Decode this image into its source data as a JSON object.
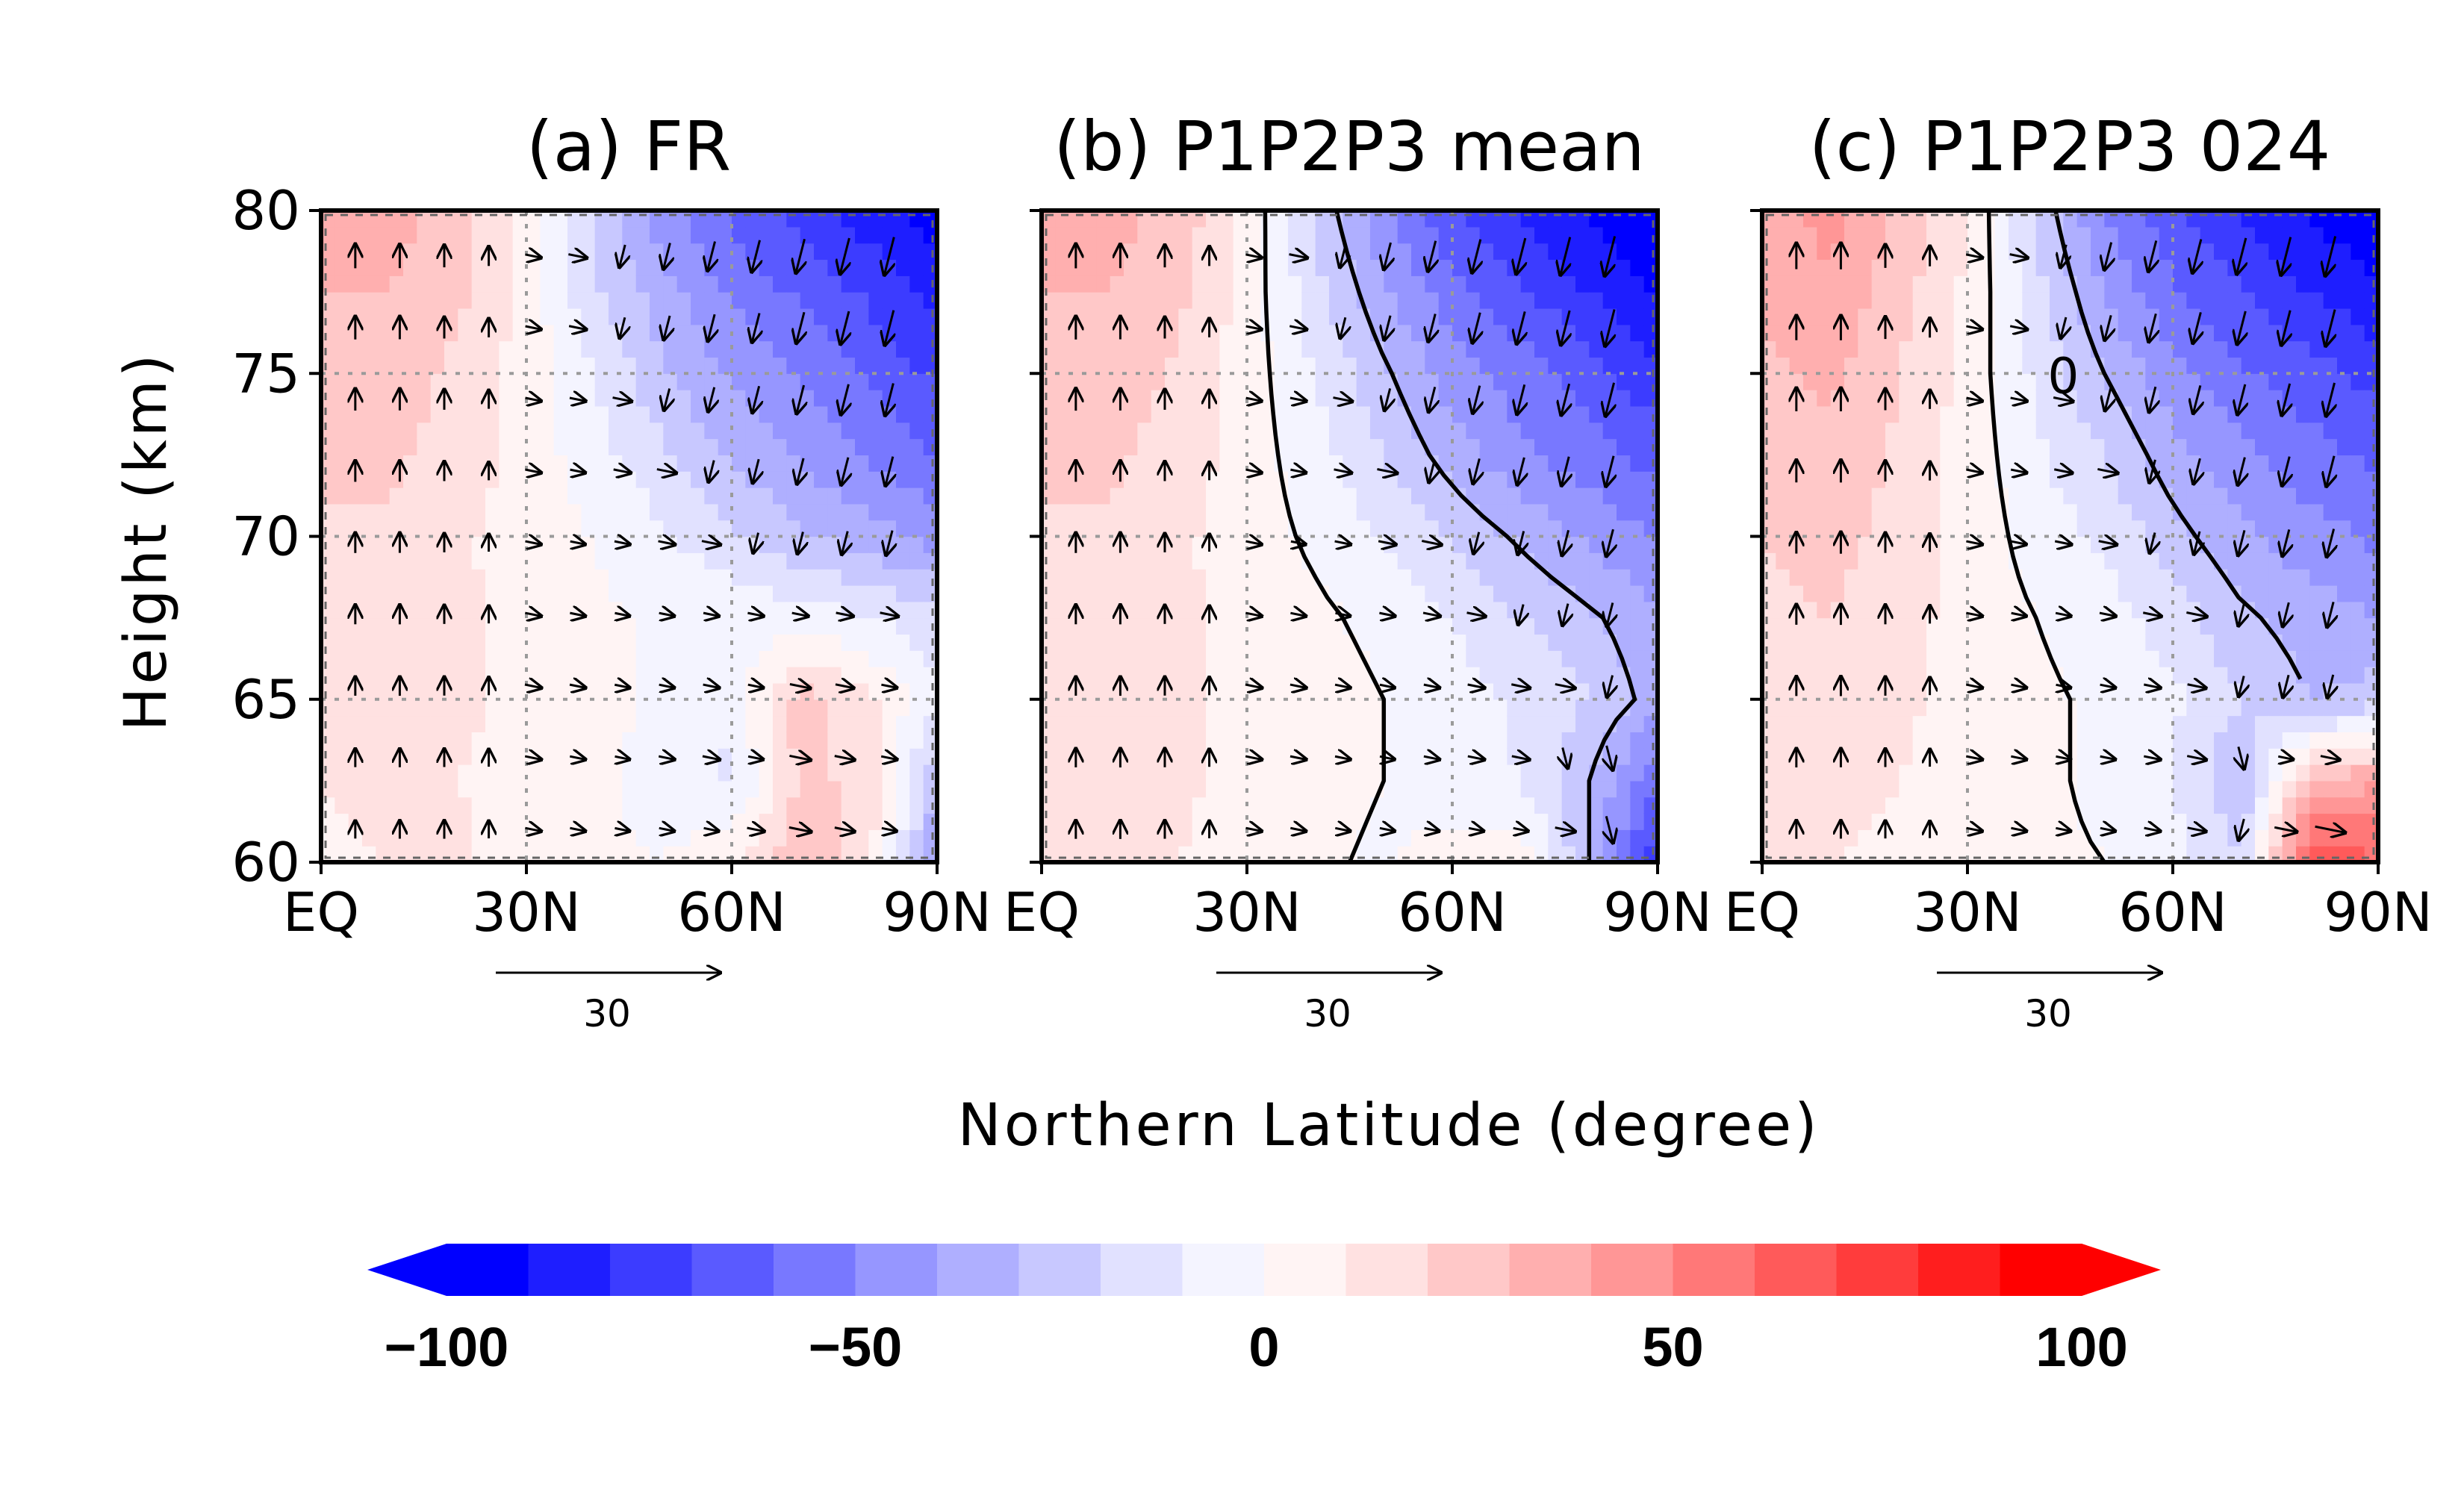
{
  "figure": {
    "ylabel": "Height (km)",
    "xlabel": "Northern Latitude (degree)",
    "reference_vector_label": "30",
    "contour_zero_label": "0"
  },
  "colorbar": {
    "tick_labels": [
      "−100",
      "−50",
      "0",
      "50",
      "100"
    ],
    "levels": [
      -100,
      -90,
      -80,
      -70,
      -60,
      -50,
      -40,
      -30,
      -20,
      -10,
      0,
      10,
      20,
      30,
      40,
      50,
      60,
      70,
      80,
      90,
      100
    ],
    "extend": "both",
    "colors": [
      "#0000ff",
      "#1e1eff",
      "#3c3cff",
      "#5a5aff",
      "#7878ff",
      "#9696ff",
      "#afafff",
      "#c8c8ff",
      "#e1e1ff",
      "#f4f4ff",
      "#fff4f4",
      "#ffe1e1",
      "#ffc8c8",
      "#ffafaf",
      "#ff9696",
      "#ff7878",
      "#ff5a5a",
      "#ff3c3c",
      "#ff1e1e",
      "#ff0000"
    ]
  },
  "chart_data": [
    {
      "type": "heatmap",
      "title": "(a) FR",
      "xlabel": "Northern Latitude (degree)",
      "ylabel": "Height (km)",
      "x_ticks": [
        "EQ",
        "30N",
        "60N",
        "90N"
      ],
      "x_tick_values": [
        0,
        30,
        60,
        90
      ],
      "y_ticks": [
        "60",
        "65",
        "70",
        "75",
        "80"
      ],
      "y_tick_values": [
        60,
        65,
        70,
        75,
        80
      ],
      "xlim": [
        0,
        90
      ],
      "ylim": [
        60,
        80
      ],
      "grid": true,
      "lat": [
        0,
        10,
        20,
        30,
        40,
        50,
        60,
        70,
        80,
        90
      ],
      "height": [
        60,
        62.5,
        65,
        67.5,
        70,
        72.5,
        75,
        77.5,
        80
      ],
      "values": [
        [
          8,
          10,
          12,
          5,
          2,
          0,
          8,
          28,
          12,
          -40
        ],
        [
          10,
          12,
          10,
          6,
          2,
          -5,
          -12,
          22,
          18,
          -30
        ],
        [
          12,
          14,
          12,
          8,
          4,
          -2,
          -8,
          25,
          12,
          -8
        ],
        [
          14,
          16,
          12,
          6,
          2,
          -2,
          -3,
          -5,
          -10,
          -15
        ],
        [
          18,
          18,
          12,
          5,
          0,
          -8,
          -18,
          -28,
          -35,
          -45
        ],
        [
          22,
          22,
          16,
          6,
          -6,
          -18,
          -32,
          -42,
          -52,
          -60
        ],
        [
          25,
          25,
          18,
          6,
          -10,
          -28,
          -42,
          -52,
          -62,
          -72
        ],
        [
          30,
          30,
          22,
          6,
          -18,
          -36,
          -52,
          -62,
          -72,
          -85
        ],
        [
          32,
          34,
          25,
          8,
          -22,
          -45,
          -62,
          -75,
          -85,
          -95
        ]
      ],
      "contours": false,
      "vector_reference": 30
    },
    {
      "type": "heatmap",
      "title": "(b) P1P2P3 mean",
      "xlabel": "Northern Latitude (degree)",
      "ylabel": "Height (km)",
      "x_ticks": [
        "EQ",
        "30N",
        "60N",
        "90N"
      ],
      "x_tick_values": [
        0,
        30,
        60,
        90
      ],
      "y_ticks": [
        "60",
        "65",
        "70",
        "75",
        "80"
      ],
      "y_tick_values": [
        60,
        65,
        70,
        75,
        80
      ],
      "xlim": [
        0,
        90
      ],
      "ylim": [
        60,
        80
      ],
      "grid": true,
      "lat": [
        0,
        10,
        20,
        30,
        40,
        50,
        60,
        70,
        80,
        90
      ],
      "height": [
        60,
        62.5,
        65,
        67.5,
        70,
        72.5,
        75,
        77.5,
        80
      ],
      "values": [
        [
          10,
          12,
          10,
          4,
          2,
          -2,
          6,
          8,
          -30,
          -80
        ],
        [
          12,
          14,
          12,
          6,
          4,
          0,
          -6,
          -10,
          -30,
          -60
        ],
        [
          12,
          14,
          12,
          8,
          5,
          0,
          -5,
          -12,
          -20,
          -35
        ],
        [
          14,
          16,
          12,
          6,
          2,
          -3,
          -10,
          -20,
          -28,
          -38
        ],
        [
          18,
          18,
          12,
          5,
          -2,
          -10,
          -22,
          -32,
          -42,
          -50
        ],
        [
          22,
          22,
          16,
          5,
          -6,
          -20,
          -35,
          -48,
          -56,
          -64
        ],
        [
          26,
          26,
          18,
          5,
          -10,
          -28,
          -45,
          -55,
          -65,
          -78
        ],
        [
          30,
          30,
          22,
          6,
          -16,
          -38,
          -56,
          -68,
          -80,
          -92
        ],
        [
          34,
          34,
          26,
          8,
          -22,
          -48,
          -68,
          -82,
          -92,
          -100
        ]
      ],
      "contours": true,
      "vector_reference": 30
    },
    {
      "type": "heatmap",
      "title": "(c) P1P2P3 024",
      "xlabel": "Northern Latitude (degree)",
      "ylabel": "Height (km)",
      "x_ticks": [
        "EQ",
        "30N",
        "60N",
        "90N"
      ],
      "x_tick_values": [
        0,
        30,
        60,
        90
      ],
      "y_ticks": [
        "60",
        "65",
        "70",
        "75",
        "80"
      ],
      "y_tick_values": [
        60,
        65,
        70,
        75,
        80
      ],
      "xlim": [
        0,
        90
      ],
      "ylim": [
        60,
        80
      ],
      "grid": true,
      "lat": [
        0,
        10,
        20,
        30,
        40,
        50,
        60,
        70,
        80,
        90
      ],
      "height": [
        60,
        62.5,
        65,
        67.5,
        70,
        72.5,
        75,
        77.5,
        80
      ],
      "values": [
        [
          12,
          10,
          8,
          4,
          2,
          0,
          -6,
          -20,
          70,
          60
        ],
        [
          14,
          12,
          10,
          6,
          2,
          -2,
          -10,
          -30,
          30,
          40
        ],
        [
          14,
          16,
          12,
          6,
          2,
          -2,
          -8,
          -20,
          -30,
          -25
        ],
        [
          16,
          20,
          14,
          6,
          0,
          -5,
          -15,
          -28,
          -35,
          -40
        ],
        [
          20,
          24,
          16,
          6,
          -4,
          -12,
          -26,
          -38,
          -46,
          -52
        ],
        [
          24,
          28,
          18,
          6,
          -8,
          -20,
          -36,
          -48,
          -56,
          -62
        ],
        [
          28,
          32,
          20,
          6,
          -12,
          -30,
          -46,
          -58,
          -66,
          -74
        ],
        [
          32,
          38,
          24,
          8,
          -16,
          -40,
          -58,
          -70,
          -80,
          -88
        ],
        [
          36,
          44,
          28,
          10,
          -22,
          -50,
          -68,
          -82,
          -92,
          -98
        ]
      ],
      "contours": true,
      "vector_reference": 30
    }
  ]
}
